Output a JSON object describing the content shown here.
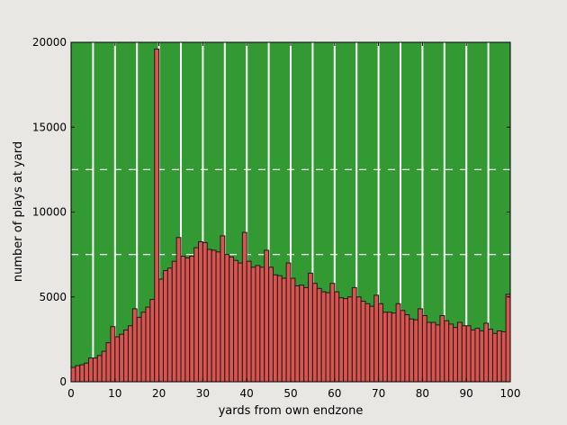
{
  "chart_data": {
    "type": "bar",
    "title": "",
    "xlabel": "yards from own endzone",
    "ylabel": "number of plays at yard",
    "xlim": [
      0,
      100
    ],
    "ylim": [
      0,
      20000
    ],
    "xticks": [
      0,
      10,
      20,
      30,
      40,
      50,
      60,
      70,
      80,
      90,
      100
    ],
    "yticks": [
      0,
      5000,
      10000,
      15000,
      20000
    ],
    "xtick_labels": [
      "0",
      "10",
      "20",
      "30",
      "40",
      "50",
      "60",
      "70",
      "80",
      "90",
      "100"
    ],
    "ytick_labels": [
      "0",
      "5000",
      "10000",
      "15000",
      "20000"
    ],
    "grid": false,
    "legend": null,
    "background_color": "#339933",
    "bar_color": "#d9534f",
    "bar_edge_color": "#1a1a1a",
    "field_lines": {
      "vertical_solid_every_yards": 5,
      "horizontal_dashed_at": [
        7500,
        12500
      ],
      "color": "#ffffff"
    },
    "bin_width": 1,
    "categories": [
      0,
      1,
      2,
      3,
      4,
      5,
      6,
      7,
      8,
      9,
      10,
      11,
      12,
      13,
      14,
      15,
      16,
      17,
      18,
      19,
      20,
      21,
      22,
      23,
      24,
      25,
      26,
      27,
      28,
      29,
      30,
      31,
      32,
      33,
      34,
      35,
      36,
      37,
      38,
      39,
      40,
      41,
      42,
      43,
      44,
      45,
      46,
      47,
      48,
      49,
      50,
      51,
      52,
      53,
      54,
      55,
      56,
      57,
      58,
      59,
      60,
      61,
      62,
      63,
      64,
      65,
      66,
      67,
      68,
      69,
      70,
      71,
      72,
      73,
      74,
      75,
      76,
      77,
      78,
      79,
      80,
      81,
      82,
      83,
      84,
      85,
      86,
      87,
      88,
      89,
      90,
      91,
      92,
      93,
      94,
      95,
      96,
      97,
      98,
      99
    ],
    "values": [
      850,
      950,
      1000,
      1100,
      1400,
      1400,
      1550,
      1800,
      2300,
      3250,
      2650,
      2800,
      3050,
      3300,
      4300,
      3800,
      4100,
      4400,
      4850,
      19600,
      6050,
      6550,
      6700,
      7100,
      8500,
      7400,
      7300,
      7400,
      7900,
      8250,
      8200,
      7800,
      7750,
      7650,
      8600,
      7500,
      7350,
      7150,
      7000,
      8800,
      7100,
      6750,
      6850,
      6750,
      7750,
      6750,
      6300,
      6250,
      6100,
      7000,
      6100,
      5650,
      5700,
      5550,
      6400,
      5800,
      5500,
      5300,
      5250,
      5800,
      5300,
      4950,
      4900,
      5000,
      5550,
      5000,
      4750,
      4600,
      4450,
      5100,
      4600,
      4100,
      4100,
      4050,
      4600,
      4200,
      3950,
      3700,
      3650,
      4300,
      3900,
      3500,
      3500,
      3350,
      3900,
      3600,
      3400,
      3200,
      3500,
      3300,
      3300,
      3050,
      3150,
      3000,
      3450,
      3100,
      2850,
      3000,
      2950,
      5150
    ]
  }
}
